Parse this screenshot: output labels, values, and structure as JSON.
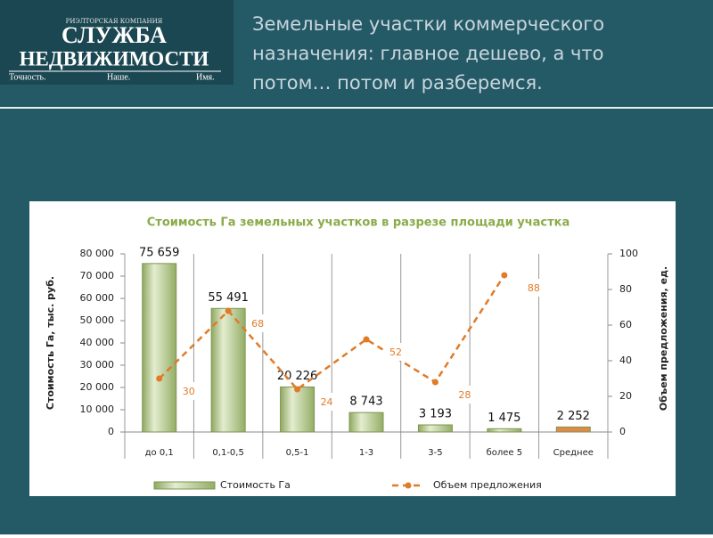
{
  "header": {
    "logo": {
      "tagline_top": "РИЭЛТОРСКАЯ КОМПАНИЯ",
      "name_line1": "СЛУЖБА",
      "name_line2": "НЕДВИЖИМОСТИ",
      "motto": [
        "Точность.",
        "Наше.",
        "Имя."
      ]
    },
    "title": [
      "Земельные участки коммерческого",
      "назначения: главное дешево, а что",
      "потом… потом и разберемся."
    ]
  },
  "chart_data": {
    "type": "combo",
    "title": "Стоимость Га земельных участков в разрезе площади участка",
    "categories": [
      "до 0,1",
      "0,1-0,5",
      "0,5-1",
      "1-3",
      "3-5",
      "более 5",
      "Среднее"
    ],
    "series": [
      {
        "name": "Стоимость Га",
        "type": "bar",
        "color": "#b7cc8c",
        "colors": [
          "#b7cc8c",
          "#b7cc8c",
          "#b7cc8c",
          "#b7cc8c",
          "#b7cc8c",
          "#b7cc8c",
          "#e08a4a"
        ],
        "values": [
          75659,
          55491,
          20226,
          8743,
          3193,
          1475,
          2252
        ],
        "value_labels": [
          "75 659",
          "55 491",
          "20 226",
          "8 743",
          "3 193",
          "1 475",
          "2 252"
        ]
      },
      {
        "name": "Объем предложения",
        "type": "line",
        "axis": "y2",
        "color": "#e07b28",
        "values": [
          30,
          68,
          24,
          52,
          28,
          88,
          null
        ]
      }
    ],
    "ylabel": "Стоимость Га, тыс. руб.",
    "y2label": "Объем предложения, ед.",
    "ylim": [
      0,
      80000
    ],
    "yticks": [
      0,
      {
        "value": 10000,
        "label": "10 000"
      },
      {
        "value": 20000,
        "label": "20 000"
      },
      {
        "value": 30000,
        "label": "30 000"
      },
      {
        "value": 40000,
        "label": "40 000"
      },
      {
        "value": 50000,
        "label": "50 000"
      },
      {
        "value": 60000,
        "label": "60 000"
      },
      {
        "value": 70000,
        "label": "70 000"
      },
      {
        "value": 80000,
        "label": "80 000"
      }
    ],
    "y2lim": [
      0,
      100
    ],
    "y2ticks": [
      0,
      20,
      40,
      60,
      80,
      100
    ],
    "xgrid": true,
    "legend": "bottom"
  }
}
